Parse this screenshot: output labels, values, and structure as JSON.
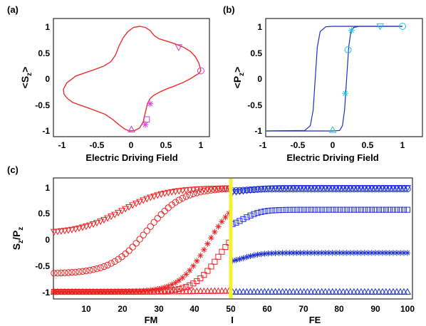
{
  "colors": {
    "loop": "#e8312f",
    "loop_b": "#1f2fbf",
    "fm": "#f02020",
    "fe": "#1f2fdf",
    "marker_a": "#d63ad6",
    "marker_b": "#22c6d6",
    "divider": "#f2f230"
  },
  "panel_a": {
    "label": "(a)",
    "xlabel": "Electric Driving Field",
    "ylabel_main": "<S",
    "ylabel_sub": "z",
    "ylabel_end": ">",
    "x_ticks": [
      "-1",
      "-0.5",
      "0",
      "0.5",
      "1"
    ],
    "y_ticks": [
      "1",
      "0.5",
      "0",
      "-0.5",
      "-1"
    ]
  },
  "panel_b": {
    "label": "(b)",
    "xlabel": "Electric Driving Field",
    "ylabel_main": "<P",
    "ylabel_sub": "z",
    "ylabel_end": ">",
    "x_ticks": [
      "-1",
      "-0.5",
      "0",
      "0.5",
      "1"
    ],
    "y_ticks": [
      "1",
      "0.5",
      "0",
      "-0.5",
      "-1"
    ]
  },
  "panel_c": {
    "label": "(c)",
    "ylabel_main": "S",
    "ylabel_sub1": "z",
    "ylabel_mid": "/P",
    "ylabel_sub2": "z",
    "x_ticks": [
      "10",
      "20",
      "30",
      "40",
      "50",
      "60",
      "70",
      "80",
      "90",
      "100"
    ],
    "y_ticks": [
      "1",
      "0.5",
      "0",
      "-0.5",
      "-1"
    ],
    "region_labels": [
      "FM",
      "I",
      "FE"
    ]
  },
  "chart_data": [
    {
      "type": "line",
      "panel": "a",
      "xlabel": "Electric Driving Field",
      "ylabel": "<Sz>",
      "xlim": [
        -1,
        1.1
      ],
      "ylim": [
        -1.05,
        1.05
      ],
      "series": [
        {
          "x": [
            1.0,
            0.97,
            0.92,
            0.85,
            0.75,
            0.62,
            0.5,
            0.4,
            0.33,
            0.27,
            0.2,
            0.12,
            0.03,
            -0.05,
            -0.12,
            -0.18,
            -0.23,
            -0.3,
            -0.4,
            -0.52,
            -0.65,
            -0.8,
            -0.93,
            -0.98,
            -0.97,
            -0.92,
            -0.85,
            -0.75,
            -0.62,
            -0.5,
            -0.38,
            -0.27,
            -0.18,
            -0.1,
            -0.03,
            0.05,
            0.12,
            0.17,
            0.2,
            0.23,
            0.27,
            0.32,
            0.4,
            0.5,
            0.62,
            0.75,
            0.85,
            0.92,
            0.97,
            1.0
          ],
          "y": [
            0.15,
            0.3,
            0.42,
            0.52,
            0.6,
            0.67,
            0.72,
            0.76,
            0.82,
            0.92,
            0.98,
            1.0,
            0.98,
            0.9,
            0.78,
            0.62,
            0.45,
            0.32,
            0.24,
            0.18,
            0.12,
            0.05,
            -0.08,
            -0.2,
            -0.3,
            -0.38,
            -0.45,
            -0.5,
            -0.56,
            -0.62,
            -0.68,
            -0.78,
            -0.88,
            -0.96,
            -1.0,
            -0.99,
            -0.94,
            -0.82,
            -0.65,
            -0.48,
            -0.38,
            -0.32,
            -0.26,
            -0.2,
            -0.14,
            -0.07,
            0.0,
            0.06,
            0.1,
            0.15
          ]
        }
      ],
      "markers": [
        {
          "shape": "circle",
          "x": 1.0,
          "y": 0.15
        },
        {
          "shape": "triangle-down",
          "x": 0.68,
          "y": 0.6
        },
        {
          "shape": "triangle-up",
          "x": 0.0,
          "y": -0.97
        },
        {
          "shape": "asterisk",
          "x": 0.2,
          "y": -0.88
        },
        {
          "shape": "square",
          "x": 0.22,
          "y": -0.78
        },
        {
          "shape": "asterisk",
          "x": 0.27,
          "y": -0.48
        }
      ]
    },
    {
      "type": "line",
      "panel": "b",
      "xlabel": "Electric Driving Field",
      "ylabel": "<Pz>",
      "xlim": [
        -1,
        1.1
      ],
      "ylim": [
        -1.05,
        1.05
      ],
      "series": [
        {
          "name": "upper",
          "x": [
            -0.95,
            -0.4,
            -0.32,
            -0.28,
            -0.25,
            -0.22,
            -0.18,
            -0.1,
            0.0,
            1.0
          ],
          "y": [
            -1.0,
            -0.99,
            -0.9,
            -0.6,
            0.0,
            0.6,
            0.9,
            0.99,
            1.0,
            1.0
          ]
        },
        {
          "name": "lower",
          "x": [
            -0.95,
            0.0,
            0.1,
            0.14,
            0.17,
            0.2,
            0.23,
            0.26,
            0.3,
            0.38,
            1.0
          ],
          "y": [
            -1.0,
            -1.0,
            -0.99,
            -0.9,
            -0.6,
            0.0,
            0.6,
            0.9,
            0.98,
            1.0,
            1.0
          ]
        }
      ],
      "markers": [
        {
          "shape": "circle",
          "x": 1.0,
          "y": 1.0
        },
        {
          "shape": "triangle-down",
          "x": 0.68,
          "y": 1.0
        },
        {
          "shape": "triangle-up",
          "x": 0.0,
          "y": -0.98
        },
        {
          "shape": "asterisk",
          "x": 0.27,
          "y": 0.92
        },
        {
          "shape": "circle",
          "x": 0.22,
          "y": 0.55
        },
        {
          "shape": "asterisk",
          "x": 0.18,
          "y": -0.28
        }
      ]
    },
    {
      "type": "scatter",
      "panel": "c",
      "ylabel": "Sz/Pz",
      "xlim": [
        1,
        100
      ],
      "ylim": [
        -1.1,
        1.1
      ],
      "divider_x": 50.5,
      "series": [
        {
          "marker": "triangle-down",
          "region": "FM",
          "start": 0.12,
          "end": 1.0,
          "center": 20,
          "width": 6
        },
        {
          "marker": "circle",
          "region": "FM",
          "start": -0.65,
          "end": 1.0,
          "center": 27,
          "width": 5
        },
        {
          "marker": "asterisk",
          "region": "FM",
          "start": -1.0,
          "end": 0.85,
          "center": 44,
          "width": 4
        },
        {
          "marker": "square",
          "region": "FM",
          "start": -1.0,
          "end": 0.35,
          "center": 47,
          "width": 3.5
        },
        {
          "marker": "triangle-up",
          "region": "FM",
          "start": -1.0,
          "end": -0.98,
          "center": 40,
          "width": 5
        },
        {
          "marker": "triangle-down",
          "region": "FE",
          "start": 0.9,
          "end": 1.0,
          "center": 55,
          "width": 2.5
        },
        {
          "marker": "circle",
          "region": "FE",
          "start": 0.94,
          "end": 0.98,
          "center": 55,
          "width": 2.5
        },
        {
          "marker": "square",
          "region": "FE",
          "start": 0.22,
          "end": 0.58,
          "center": 54,
          "width": 2.5
        },
        {
          "marker": "asterisk",
          "region": "FE",
          "start": -0.45,
          "end": -0.25,
          "center": 54,
          "width": 2.5
        },
        {
          "marker": "triangle-up",
          "region": "FE",
          "start": -1.0,
          "end": -1.0,
          "center": 60,
          "width": 3
        }
      ]
    }
  ]
}
